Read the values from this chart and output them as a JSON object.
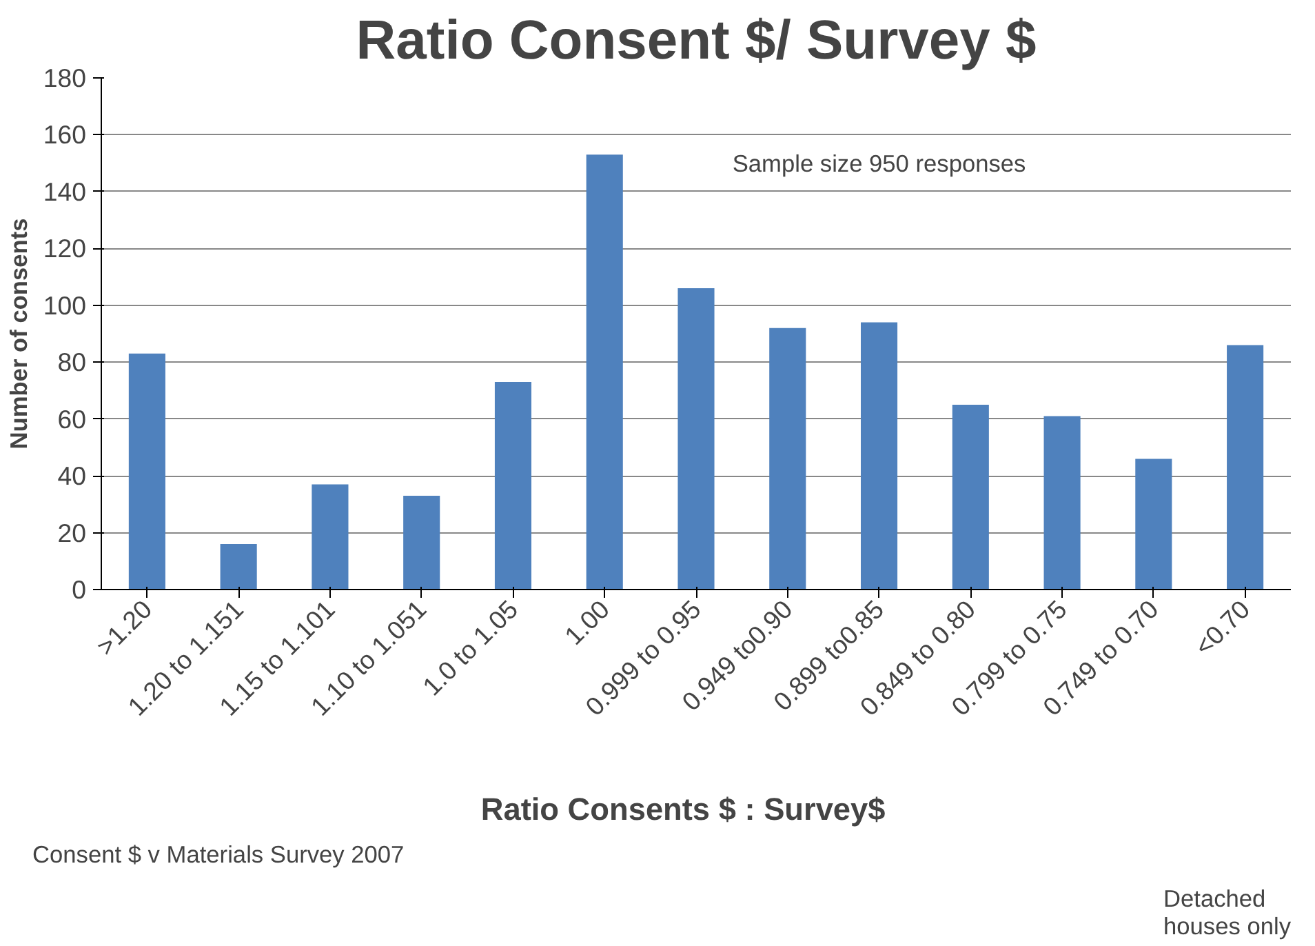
{
  "chart_data": {
    "type": "bar",
    "title": "Ratio Consent $/ Survey $",
    "xlabel": "Ratio    Consents $ : Survey$",
    "ylabel": "Number of consents",
    "categories": [
      ">1.20",
      "1.20 to 1.151",
      "1.15 to 1.101",
      "1.10 to 1.051",
      "1.0 to 1.05",
      "1.00",
      "0.999 to 0.95",
      "0.949 to0.90",
      "0.899 to0.85",
      "0.849 to 0.80",
      "0.799 to 0.75",
      "0.749 to 0.70",
      "<0.70"
    ],
    "values": [
      83,
      16,
      37,
      33,
      73,
      153,
      106,
      92,
      94,
      65,
      61,
      46,
      86
    ],
    "color": "#4f81bd",
    "ylim": [
      0,
      180
    ],
    "yticks": [
      0,
      20,
      40,
      60,
      80,
      100,
      120,
      140,
      160,
      180
    ],
    "grid": "y",
    "annotations": [
      "Sample size 950 responses",
      "Consent $ v Materials Survey 2007",
      "Detached\nhouses only"
    ]
  }
}
